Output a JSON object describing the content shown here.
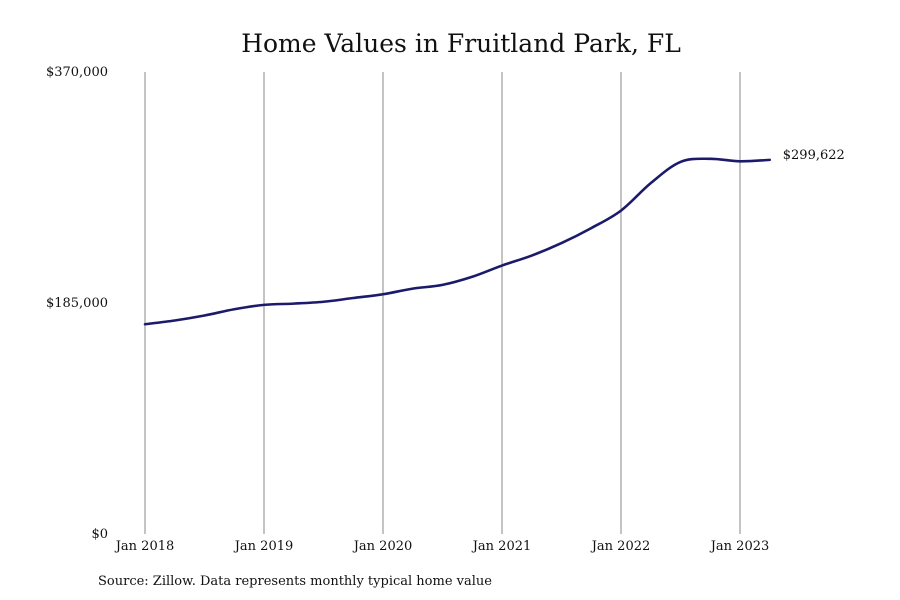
{
  "chart_data": {
    "type": "line",
    "title": "Home Values in Fruitland Park, FL",
    "source": "Source: Zillow. Data represents monthly typical home value",
    "xlabel": "",
    "ylabel": "",
    "x_start": "2018-01",
    "x_end": "2023-04",
    "ylim": [
      0,
      370000
    ],
    "y_ticks": [
      {
        "value": 0,
        "label": "$0"
      },
      {
        "value": 185000,
        "label": "$185,000"
      },
      {
        "value": 370000,
        "label": "$370,000"
      }
    ],
    "x_ticks": [
      {
        "date": "2018-01",
        "label": "Jan 2018"
      },
      {
        "date": "2019-01",
        "label": "Jan 2019"
      },
      {
        "date": "2020-01",
        "label": "Jan 2020"
      },
      {
        "date": "2021-01",
        "label": "Jan 2021"
      },
      {
        "date": "2022-01",
        "label": "Jan 2022"
      },
      {
        "date": "2023-01",
        "label": "Jan 2023"
      }
    ],
    "grid": {
      "vertical": true,
      "horizontal": false
    },
    "legend": "none",
    "series": [
      {
        "color": "#1c1a6b",
        "end_label": "$299,622",
        "points": [
          {
            "x": "2018-01",
            "y": 168000
          },
          {
            "x": "2018-04",
            "y": 171000
          },
          {
            "x": "2018-07",
            "y": 175000
          },
          {
            "x": "2018-10",
            "y": 180000
          },
          {
            "x": "2019-01",
            "y": 183500
          },
          {
            "x": "2019-04",
            "y": 184500
          },
          {
            "x": "2019-07",
            "y": 186000
          },
          {
            "x": "2019-10",
            "y": 189000
          },
          {
            "x": "2020-01",
            "y": 192000
          },
          {
            "x": "2020-04",
            "y": 196500
          },
          {
            "x": "2020-07",
            "y": 199500
          },
          {
            "x": "2020-10",
            "y": 206000
          },
          {
            "x": "2021-01",
            "y": 215000
          },
          {
            "x": "2021-04",
            "y": 223000
          },
          {
            "x": "2021-07",
            "y": 233000
          },
          {
            "x": "2021-10",
            "y": 245000
          },
          {
            "x": "2022-01",
            "y": 259000
          },
          {
            "x": "2022-04",
            "y": 281000
          },
          {
            "x": "2022-07",
            "y": 298000
          },
          {
            "x": "2022-10",
            "y": 300500
          },
          {
            "x": "2023-01",
            "y": 298500
          },
          {
            "x": "2023-04",
            "y": 299622
          }
        ]
      }
    ]
  }
}
